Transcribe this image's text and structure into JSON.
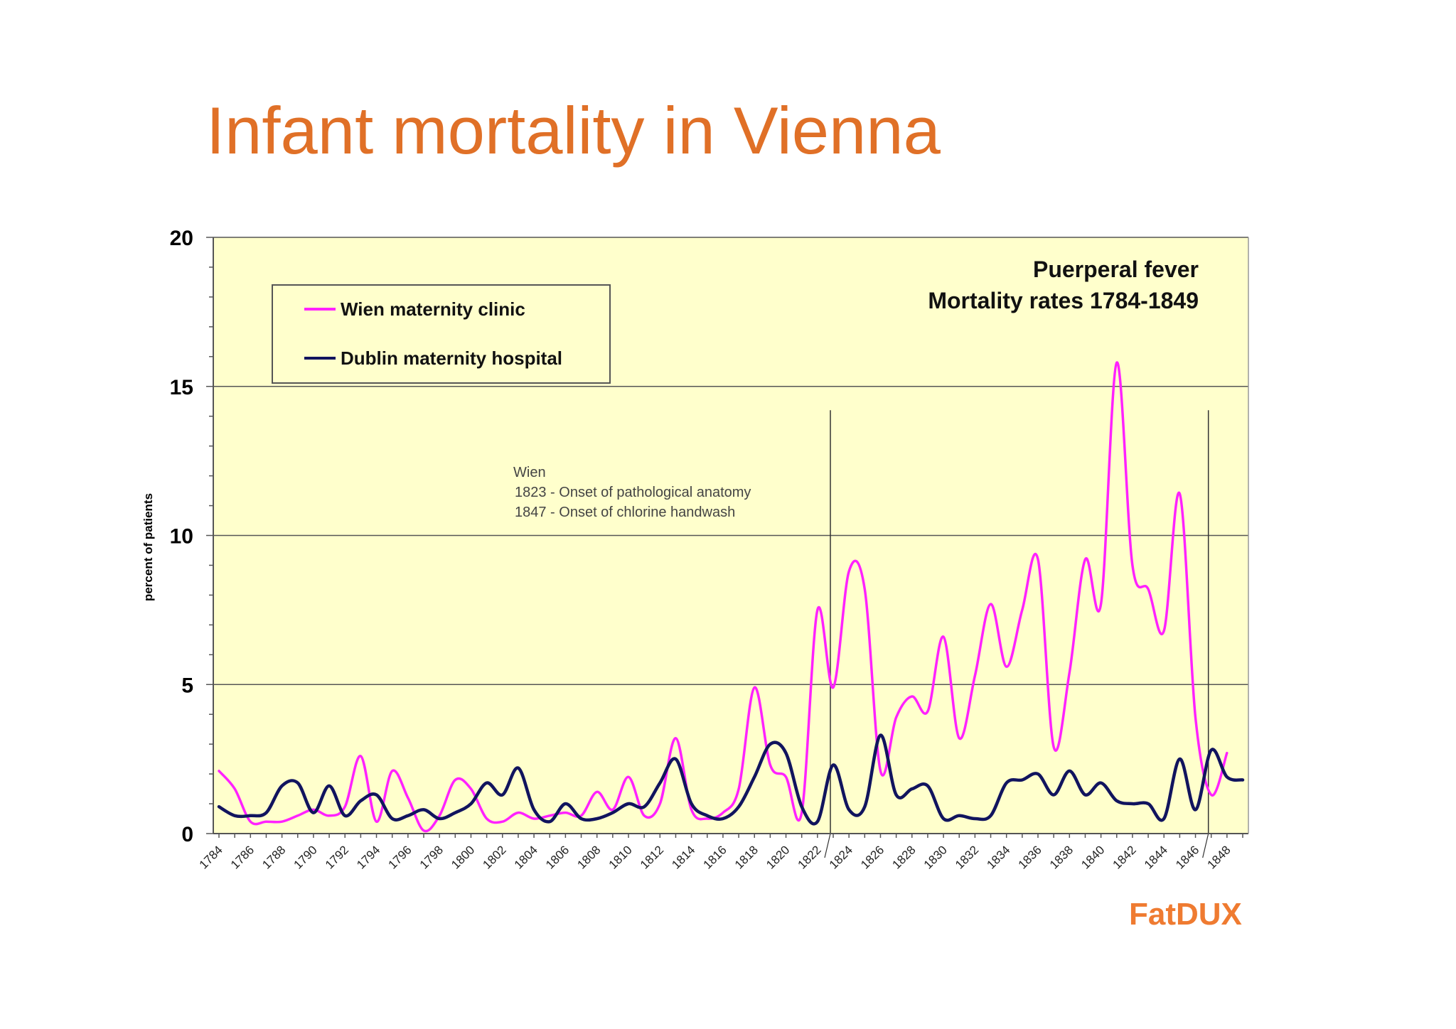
{
  "slide": {
    "title": "Infant mortality in Vienna",
    "brand": "FatDUX",
    "colors": {
      "title": "#e07027",
      "brand": "#ef7b31",
      "plot_background": "#ffffcc"
    }
  },
  "chart_data": {
    "type": "line",
    "title_lines": [
      "Puerperal fever",
      "Mortality rates 1784-1849"
    ],
    "xlabel": "",
    "ylabel": "percent of patients",
    "xlim": [
      1784,
      1849
    ],
    "ylim": [
      0,
      20
    ],
    "y_ticks": [
      0,
      5,
      10,
      15,
      20
    ],
    "x_ticks": [
      "1784",
      "1786",
      "1788",
      "1790",
      "1792",
      "1794",
      "1796",
      "1798",
      "1800",
      "1802",
      "1804",
      "1806",
      "1808",
      "1810",
      "1812",
      "1814",
      "1816",
      "1818",
      "1820",
      "1822",
      "1824",
      "1826",
      "1828",
      "1830",
      "1832",
      "1834",
      "1836",
      "1838",
      "1840",
      "1842",
      "1844",
      "1846",
      "1848"
    ],
    "grid": "horizontal",
    "legend": "top-left",
    "annotation_lines": [
      "Wien",
      "1823 - Onset of pathological anatomy",
      "1847 - Onset of chlorine handwash"
    ],
    "vlines": [
      1823,
      1847
    ],
    "series": [
      {
        "name": "Wien maternity clinic",
        "color": "#ff22ff",
        "x": [
          1784,
          1785,
          1786,
          1787,
          1788,
          1789,
          1790,
          1791,
          1792,
          1793,
          1794,
          1795,
          1796,
          1797,
          1798,
          1799,
          1800,
          1801,
          1802,
          1803,
          1804,
          1805,
          1806,
          1807,
          1808,
          1809,
          1810,
          1811,
          1812,
          1813,
          1814,
          1815,
          1816,
          1817,
          1818,
          1819,
          1820,
          1821,
          1822,
          1823,
          1824,
          1825,
          1826,
          1827,
          1828,
          1829,
          1830,
          1831,
          1832,
          1833,
          1834,
          1835,
          1836,
          1837,
          1838,
          1839,
          1840,
          1841,
          1842,
          1843,
          1844,
          1845,
          1846,
          1847,
          1848,
          1849
        ],
        "values": [
          2.1,
          1.5,
          0.4,
          0.4,
          0.4,
          0.6,
          0.8,
          0.6,
          0.9,
          2.6,
          0.4,
          2.1,
          1.2,
          0.1,
          0.6,
          1.8,
          1.5,
          0.5,
          0.4,
          0.7,
          0.5,
          0.6,
          0.7,
          0.6,
          1.4,
          0.8,
          1.9,
          0.6,
          1.0,
          3.2,
          0.8,
          0.5,
          0.7,
          1.5,
          4.9,
          2.3,
          1.9,
          0.7,
          7.5,
          4.9,
          8.8,
          8.2,
          2.1,
          3.9,
          4.6,
          4.1,
          6.6,
          3.2,
          5.3,
          7.7,
          5.6,
          7.5,
          9.2,
          2.9,
          5.4,
          9.2,
          7.7,
          15.8,
          9.0,
          8.2,
          6.8,
          11.4,
          3.9,
          1.3,
          2.7,
          null
        ]
      },
      {
        "name": "Dublin maternity hospital",
        "color": "#11145e",
        "x": [
          1784,
          1785,
          1786,
          1787,
          1788,
          1789,
          1790,
          1791,
          1792,
          1793,
          1794,
          1795,
          1796,
          1797,
          1798,
          1799,
          1800,
          1801,
          1802,
          1803,
          1804,
          1805,
          1806,
          1807,
          1808,
          1809,
          1810,
          1811,
          1812,
          1813,
          1814,
          1815,
          1816,
          1817,
          1818,
          1819,
          1820,
          1821,
          1822,
          1823,
          1824,
          1825,
          1826,
          1827,
          1828,
          1829,
          1830,
          1831,
          1832,
          1833,
          1834,
          1835,
          1836,
          1837,
          1838,
          1839,
          1840,
          1841,
          1842,
          1843,
          1844,
          1845,
          1846,
          1847,
          1848,
          1849
        ],
        "values": [
          0.9,
          0.6,
          0.6,
          0.7,
          1.6,
          1.7,
          0.7,
          1.6,
          0.6,
          1.1,
          1.3,
          0.5,
          0.6,
          0.8,
          0.5,
          0.7,
          1.0,
          1.7,
          1.3,
          2.2,
          0.8,
          0.4,
          1.0,
          0.5,
          0.5,
          0.7,
          1.0,
          0.9,
          1.7,
          2.5,
          1.0,
          0.6,
          0.5,
          0.9,
          1.9,
          3.0,
          2.7,
          0.9,
          0.4,
          2.3,
          0.8,
          0.9,
          3.3,
          1.3,
          1.5,
          1.6,
          0.5,
          0.6,
          0.5,
          0.6,
          1.7,
          1.8,
          2.0,
          1.3,
          2.1,
          1.3,
          1.7,
          1.1,
          1.0,
          1.0,
          0.5,
          2.5,
          0.8,
          2.8,
          1.9,
          1.8
        ]
      }
    ]
  }
}
